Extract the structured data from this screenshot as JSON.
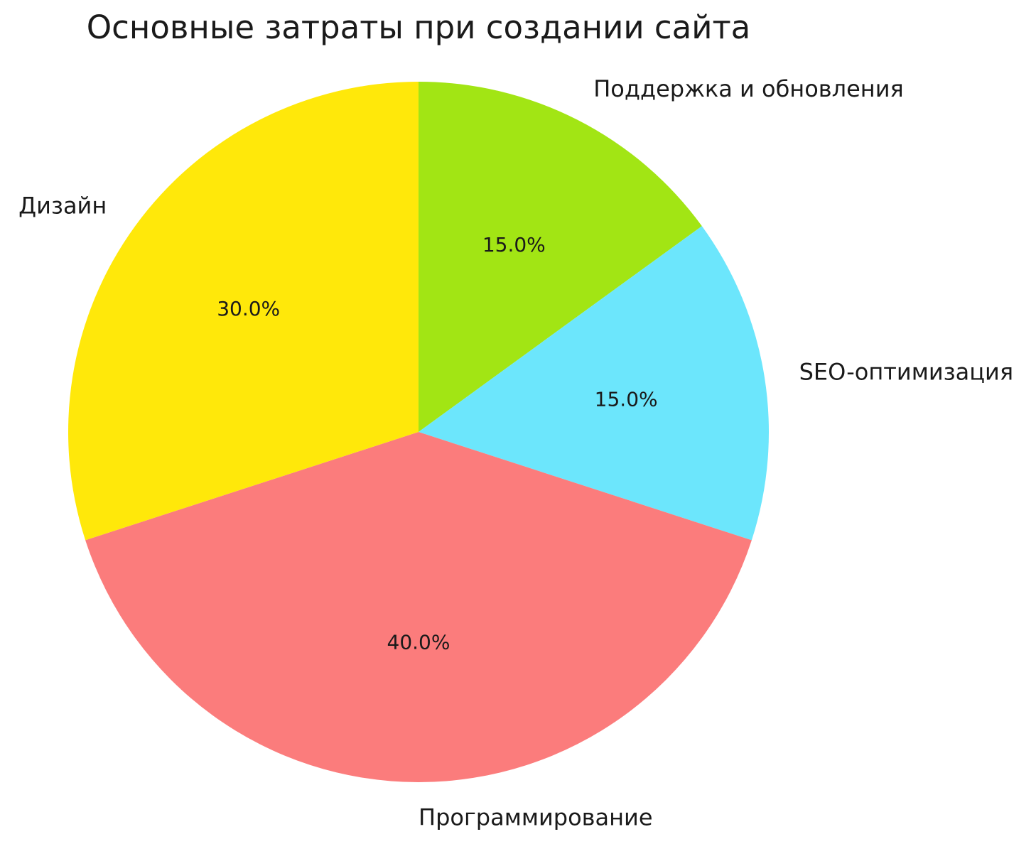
{
  "page": {
    "background": "#ffffff",
    "text_color": "#1a1a1a"
  },
  "chart_data": {
    "type": "pie",
    "title": "Основные затраты при создании сайта",
    "labels": [
      "Поддержка и обновления",
      "SEO-оптимизация",
      "Программирование",
      "Дизайн"
    ],
    "values": [
      15.0,
      15.0,
      40.0,
      30.0
    ],
    "pct_labels": [
      "15.0%",
      "15.0%",
      "40.0%",
      "30.0%"
    ],
    "colors": [
      "#A2E514",
      "#6CE6FC",
      "#FB7C7C",
      "#FFE80A"
    ],
    "start_angle": "12-oclock",
    "direction": "clockwise",
    "legend": "none",
    "label_position": "outside",
    "pct_position": "inside"
  }
}
